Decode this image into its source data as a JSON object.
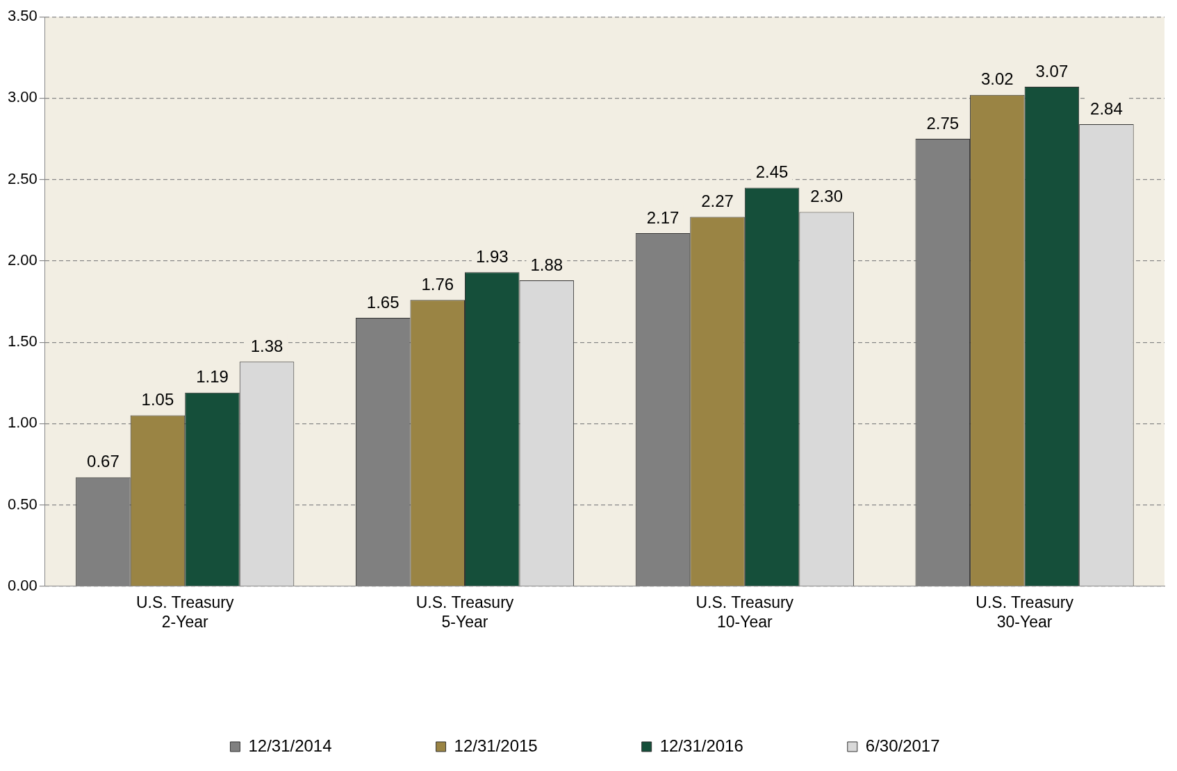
{
  "chart_data": {
    "type": "bar",
    "categories": [
      "U.S. Treasury\n2-Year",
      "U.S. Treasury\n5-Year",
      "U.S. Treasury\n10-Year",
      "U.S. Treasury\n30-Year"
    ],
    "series": [
      {
        "name": "12/31/2014",
        "color": "#808080",
        "values": [
          0.67,
          1.65,
          2.17,
          2.75
        ],
        "value_labels": [
          "0.67",
          "1.65",
          "2.17",
          "2.75"
        ]
      },
      {
        "name": "12/31/2015",
        "color": "#9a8444",
        "values": [
          1.05,
          1.76,
          2.27,
          3.02
        ],
        "value_labels": [
          "1.05",
          "1.76",
          "2.27",
          "3.02"
        ]
      },
      {
        "name": "12/31/2016",
        "color": "#154f3a",
        "values": [
          1.19,
          1.93,
          2.45,
          3.07
        ],
        "value_labels": [
          "1.19",
          "1.93",
          "2.45",
          "3.07"
        ]
      },
      {
        "name": "6/30/2017",
        "color": "#d9d9d9",
        "values": [
          1.38,
          1.88,
          2.3,
          2.84
        ],
        "value_labels": [
          "1.38",
          "1.88",
          "2.30",
          "2.84"
        ]
      }
    ],
    "ylim": [
      0,
      3.5
    ],
    "yticks": [
      {
        "value": 0,
        "label": "0.00"
      },
      {
        "value": 0.5,
        "label": "0.50"
      },
      {
        "value": 1,
        "label": "1.00"
      },
      {
        "value": 1.5,
        "label": "1.50"
      },
      {
        "value": 2,
        "label": "2.00"
      },
      {
        "value": 2.5,
        "label": "2.50"
      },
      {
        "value": 3,
        "label": "3.00"
      },
      {
        "value": 3.5,
        "label": "3.50"
      }
    ],
    "grid": "y",
    "line_style": "dashed",
    "legend": "bottom"
  }
}
